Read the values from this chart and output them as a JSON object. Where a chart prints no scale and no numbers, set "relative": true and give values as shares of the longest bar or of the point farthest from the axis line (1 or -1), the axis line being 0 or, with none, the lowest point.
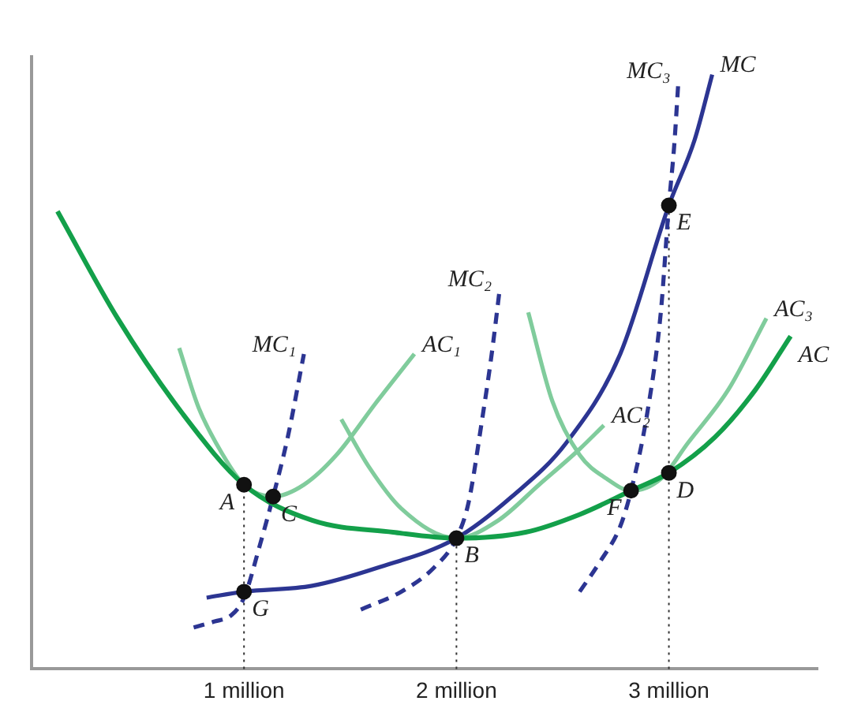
{
  "chart_data": {
    "type": "line",
    "relative": true,
    "xlim": [
      0,
      3.7
    ],
    "xticks": [
      {
        "value": 1,
        "label": "1 million"
      },
      {
        "value": 2,
        "label": "2 million"
      },
      {
        "value": 3,
        "label": "3 million"
      }
    ],
    "grid": false,
    "legend": false,
    "marker": "none",
    "series": [
      {
        "name": "AC",
        "color": "#13a04a",
        "line_style": "solid",
        "x": [
          0.122,
          0.405,
          0.71,
          1,
          1.321,
          1.702,
          2,
          2.325,
          2.58,
          2.822,
          3,
          3.217,
          3.408,
          3.573
        ],
        "values": [
          0.77,
          0.59,
          0.43,
          0.31,
          0.25,
          0.23,
          0.22,
          0.23,
          0.26,
          0.3,
          0.33,
          0.39,
          0.47,
          0.56
        ]
      },
      {
        "name": "AC₁",
        "color": "#80cc9c",
        "line_style": "solid",
        "x": [
          0.695,
          0.786,
          0.901,
          1,
          1.137,
          1.282,
          1.435,
          1.626,
          1.802
        ],
        "values": [
          0.54,
          0.44,
          0.36,
          0.31,
          0.29,
          0.31,
          0.36,
          0.45,
          0.53
        ]
      },
      {
        "name": "AC₂",
        "color": "#80cc9c",
        "line_style": "solid",
        "x": [
          1.458,
          1.588,
          1.74,
          2,
          2.197,
          2.389,
          2.58,
          2.694
        ],
        "values": [
          0.42,
          0.34,
          0.27,
          0.22,
          0.25,
          0.31,
          0.37,
          0.41
        ]
      },
      {
        "name": "AC₃",
        "color": "#80cc9c",
        "line_style": "solid",
        "x": [
          2.338,
          2.452,
          2.58,
          2.707,
          2.822,
          2.962,
          3.089,
          3.28,
          3.459
        ],
        "values": [
          0.6,
          0.45,
          0.36,
          0.32,
          0.3,
          0.32,
          0.38,
          0.47,
          0.59
        ]
      },
      {
        "name": "MC₁",
        "color": "#2c3592",
        "line_style": "dashed",
        "x": [
          0.763,
          0.863,
          0.939,
          1,
          1.076,
          1.137,
          1.206,
          1.282
        ],
        "values": [
          0.07,
          0.08,
          0.09,
          0.12,
          0.21,
          0.29,
          0.39,
          0.53
        ]
      },
      {
        "name": "MC₂",
        "color": "#2c3592",
        "line_style": "dashed",
        "x": [
          1.55,
          1.74,
          1.893,
          2,
          2.057,
          2.121,
          2.166,
          2.204
        ],
        "values": [
          0.1,
          0.13,
          0.17,
          0.22,
          0.28,
          0.42,
          0.53,
          0.64
        ]
      },
      {
        "name": "MC₃",
        "color": "#2c3592",
        "line_style": "dashed",
        "x": [
          2.58,
          2.675,
          2.771,
          2.822,
          2.898,
          2.962,
          3,
          3.025,
          3.045
        ],
        "values": [
          0.13,
          0.18,
          0.24,
          0.3,
          0.43,
          0.6,
          0.78,
          0.88,
          0.99
        ]
      },
      {
        "name": "MC",
        "color": "#2c3592",
        "line_style": "solid",
        "x": [
          0.824,
          1,
          1.321,
          1.626,
          2,
          2.261,
          2.516,
          2.771,
          3,
          3.121,
          3.204
        ],
        "values": [
          0.12,
          0.13,
          0.14,
          0.17,
          0.22,
          0.29,
          0.38,
          0.53,
          0.78,
          0.89,
          1
        ]
      },
      {
        "type": "scatter",
        "color": "#111111",
        "marker": "circle",
        "x": [
          1,
          1.137,
          1,
          2,
          2.822,
          3,
          3
        ],
        "values": [
          0.31,
          0.29,
          0.13,
          0.22,
          0.3,
          0.33,
          0.78
        ]
      }
    ],
    "ref_lines": [
      {
        "axis": "x",
        "value": 1,
        "line_style": "dotted",
        "color": "#333333"
      },
      {
        "axis": "x",
        "value": 2,
        "line_style": "dotted",
        "color": "#333333"
      },
      {
        "axis": "x",
        "value": 3,
        "line_style": "dotted",
        "color": "#333333"
      }
    ],
    "annotations": [
      {
        "text": "A",
        "x": 1,
        "y": 0.31
      },
      {
        "text": "C",
        "x": 1.137,
        "y": 0.29
      },
      {
        "text": "G",
        "x": 1,
        "y": 0.13
      },
      {
        "text": "B",
        "x": 2,
        "y": 0.22
      },
      {
        "text": "F",
        "x": 2.822,
        "y": 0.3
      },
      {
        "text": "D",
        "x": 3,
        "y": 0.33
      },
      {
        "text": "E",
        "x": 3,
        "y": 0.78
      }
    ]
  }
}
